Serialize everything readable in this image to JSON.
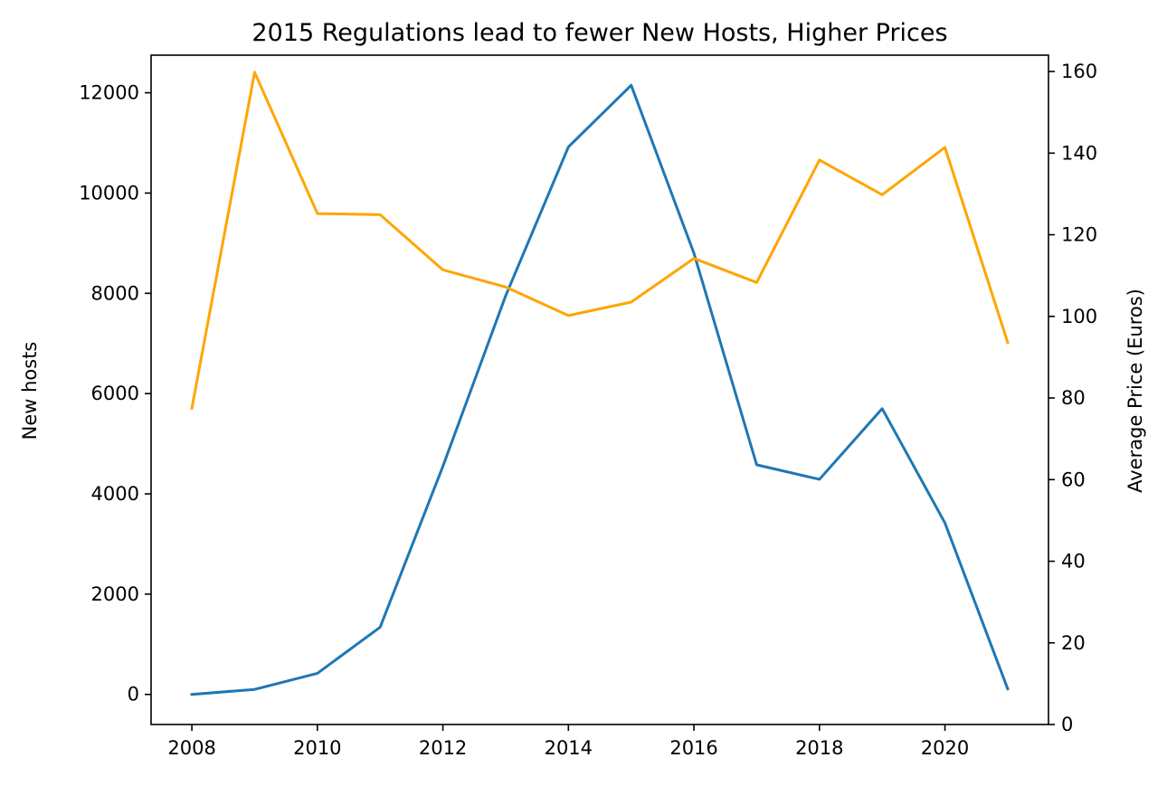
{
  "chart_data": {
    "type": "line",
    "title": "2015 Regulations lead to fewer New Hosts, Higher Prices",
    "xlabel": "",
    "ylabel_left": "New hosts",
    "ylabel_right": "Average Price (Euros)",
    "x": [
      2008,
      2009,
      2010,
      2011,
      2012,
      2013,
      2014,
      2015,
      2016,
      2017,
      2018,
      2019,
      2020,
      2021
    ],
    "xlim": [
      2007.35,
      2021.65
    ],
    "ylim_left": [
      -600,
      12750
    ],
    "ylim_right": [
      0,
      164
    ],
    "xticks": [
      2008,
      2010,
      2012,
      2014,
      2016,
      2018,
      2020
    ],
    "yticks_left": [
      0,
      2000,
      4000,
      6000,
      8000,
      10000,
      12000
    ],
    "yticks_right": [
      0,
      20,
      40,
      60,
      80,
      100,
      120,
      140,
      160
    ],
    "grid": false,
    "series": [
      {
        "axis": "left",
        "color": "#1f77b4",
        "values": [
          0,
          100,
          420,
          1340,
          4550,
          7950,
          10920,
          12150,
          8800,
          4580,
          4290,
          5700,
          3420,
          110
        ]
      },
      {
        "axis": "right",
        "color": "#ffa500",
        "values": [
          77.5,
          159.8,
          125.2,
          124.9,
          111.4,
          107.2,
          100.2,
          103.5,
          114.2,
          108.3,
          138.3,
          129.8,
          141.4,
          93.6
        ]
      }
    ]
  }
}
